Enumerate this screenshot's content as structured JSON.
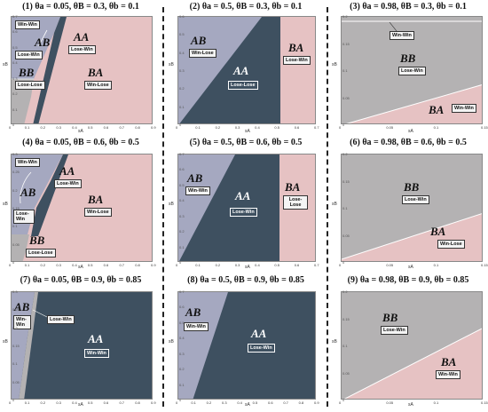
{
  "colors": {
    "AB": "#a5a8c0",
    "AA": "#3e5060",
    "BA": "#e6c2c3",
    "BB": "#b4b2b3"
  },
  "axes": {
    "x": "sA",
    "y": "sB"
  },
  "panels": [
    {
      "title": "(1) θa = 0.05, θB = 0.3, θb = 0.1",
      "regions": [
        {
          "label": "AB",
          "box": "Win-Win"
        },
        {
          "label": "AA",
          "box": "Lose-Win"
        },
        {
          "label": "BB",
          "box": "Lose-Lose"
        },
        {
          "label": "BA",
          "box": "Win-Lose"
        }
      ],
      "extra_boxes": [
        "Lose-Win"
      ],
      "xticks": [
        "0",
        "0.1",
        "0.2",
        "0.3",
        "0.4",
        "0.5",
        "0.6",
        "0.7",
        "0.8",
        "0.9"
      ],
      "yticks": [
        "0.7",
        "0.6",
        "0.5",
        "0.4",
        "0.3",
        "0.2",
        "0.1",
        "0"
      ]
    },
    {
      "title": "(2) θa = 0.5, θB = 0.3, θb = 0.1",
      "regions": [
        {
          "label": "AB",
          "box": "Win-Lose"
        },
        {
          "label": "AA",
          "box": "Lose-Lose"
        },
        {
          "label": "BA",
          "box": "Lose-Win"
        }
      ],
      "xticks": [
        "0",
        "0.1",
        "0.2",
        "0.3",
        "0.4",
        "0.5",
        "0.6",
        "0.7"
      ],
      "yticks": [
        "0.6",
        "0.5",
        "0.4",
        "0.3",
        "0.2",
        "0.1",
        "0"
      ]
    },
    {
      "title": "(3) θa = 0.98, θB = 0.3, θb = 0.1",
      "regions": [
        {
          "label": "BB",
          "box": "Lose-Win"
        },
        {
          "label": "BA",
          "box": "Win-Win"
        }
      ],
      "extra_boxes": [
        "Win-Win"
      ],
      "xticks": [
        "0",
        "0.05",
        "0.1",
        "0.15"
      ],
      "yticks": [
        "0.2",
        "0.15",
        "0.1",
        "0.05",
        "0"
      ]
    },
    {
      "title": "(4) θa = 0.05, θB = 0.6, θb = 0.5",
      "regions": [
        {
          "label": "AB",
          "box": "Lose-Win"
        },
        {
          "label": "AA",
          "box": "Lose-Win"
        },
        {
          "label": "BA",
          "box": "Win-Lose"
        },
        {
          "label": "BB",
          "box": "Lose-Lose"
        }
      ],
      "extra_boxes": [
        "Win-Win"
      ],
      "xticks": [
        "0",
        "0.1",
        "0.2",
        "0.3",
        "0.4",
        "0.5",
        "0.6",
        "0.7",
        "0.8",
        "0.9"
      ],
      "yticks": [
        "0.3",
        "0.25",
        "0.2",
        "0.15",
        "0.1",
        "0.05",
        "0"
      ]
    },
    {
      "title": "(5) θa = 0.5, θB = 0.6, θb = 0.5",
      "regions": [
        {
          "label": "AB",
          "box": "Win-Win"
        },
        {
          "label": "AA",
          "box": "Lose-Win"
        },
        {
          "label": "BA",
          "box": "Lose-Lose"
        }
      ],
      "xticks": [
        "0",
        "0.1",
        "0.2",
        "0.3",
        "0.4",
        "0.5",
        "0.6",
        "0.7"
      ],
      "yticks": [
        "0.7",
        "0.6",
        "0.5",
        "0.4",
        "0.3",
        "0.2",
        "0.1",
        "0"
      ]
    },
    {
      "title": "(6) θa = 0.98, θB = 0.6, θb = 0.5",
      "regions": [
        {
          "label": "BB",
          "box": "Lose-Win"
        },
        {
          "label": "BA",
          "box": "Win-Lose"
        }
      ],
      "xticks": [
        "0",
        "0.05",
        "0.1",
        "0.15"
      ],
      "yticks": [
        "0.2",
        "0.15",
        "0.1",
        "0.05",
        "0"
      ]
    },
    {
      "title": "(7) θa = 0.05, θB = 0.9, θb = 0.85",
      "regions": [
        {
          "label": "AB",
          "box": "Win-Win"
        },
        {
          "label": "AA",
          "box": "Win-Win"
        }
      ],
      "extra_boxes": [
        "Lose-Win"
      ],
      "xticks": [
        "0",
        "0.1",
        "0.2",
        "0.3",
        "0.4",
        "0.5",
        "0.6",
        "0.7",
        "0.8",
        "0.9"
      ],
      "yticks": [
        "0.3",
        "0.25",
        "0.2",
        "0.15",
        "0.1",
        "0.05",
        "0"
      ]
    },
    {
      "title": "(8) θa = 0.5, θB = 0.9, θb = 0.85",
      "regions": [
        {
          "label": "AB",
          "box": "Win-Win"
        },
        {
          "label": "AA",
          "box": "Lose-Win"
        }
      ],
      "xticks": [
        "0",
        "0.1",
        "0.2",
        "0.3",
        "0.4",
        "0.5",
        "0.6",
        "0.7",
        "0.8",
        "0.9"
      ],
      "yticks": [
        "0.7",
        "0.6",
        "0.5",
        "0.4",
        "0.3",
        "0.2",
        "0.1",
        "0"
      ]
    },
    {
      "title": "(9) θa = 0.98, θB = 0.9, θb = 0.85",
      "regions": [
        {
          "label": "BB",
          "box": "Lose-Win"
        },
        {
          "label": "BA",
          "box": "Win-Win"
        }
      ],
      "xticks": [
        "0",
        "0.05",
        "0.1",
        "0.15"
      ],
      "yticks": [
        "0.2",
        "0.15",
        "0.1",
        "0.05",
        "0"
      ]
    }
  ]
}
